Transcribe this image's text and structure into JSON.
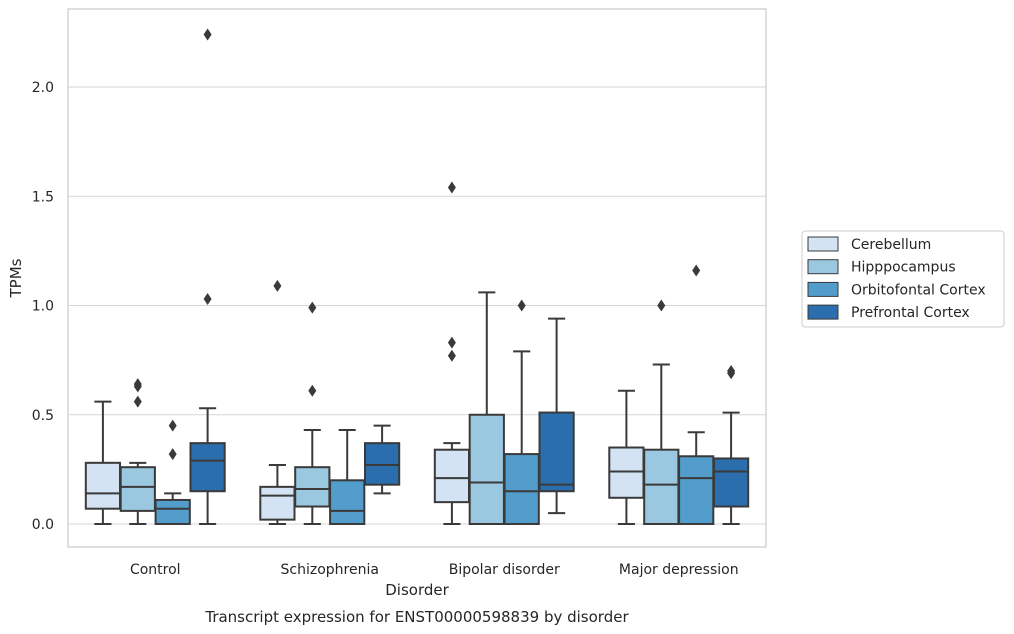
{
  "chart_data": {
    "type": "boxplot",
    "xlabel": "Disorder",
    "ylabel": "TPMs",
    "caption": "Transcript expression for ENST00000598839 by disorder",
    "ylim": [
      -0.11,
      2.36
    ],
    "yticks": [
      "0.0",
      "0.5",
      "1.0",
      "1.5",
      "2.0"
    ],
    "grid": "horizontal",
    "legend_position": "right",
    "categories": [
      "Control",
      "Schizophrenia",
      "Bipolar disorder",
      "Major depression"
    ],
    "series": [
      {
        "name": "Cerebellum",
        "color": "#d3e3f3",
        "boxes": [
          {
            "whisker_low": 0.0,
            "q1": 0.07,
            "median": 0.14,
            "q3": 0.28,
            "whisker_high": 0.56,
            "outliers": []
          },
          {
            "whisker_low": 0.0,
            "q1": 0.02,
            "median": 0.13,
            "q3": 0.17,
            "whisker_high": 0.27,
            "outliers": [
              1.09
            ]
          },
          {
            "whisker_low": 0.0,
            "q1": 0.1,
            "median": 0.21,
            "q3": 0.34,
            "whisker_high": 0.37,
            "outliers": [
              0.77,
              0.83,
              1.54
            ]
          },
          {
            "whisker_low": 0.0,
            "q1": 0.12,
            "median": 0.24,
            "q3": 0.35,
            "whisker_high": 0.61,
            "outliers": []
          }
        ]
      },
      {
        "name": "Hipppocampus",
        "color": "#9ac8e0",
        "boxes": [
          {
            "whisker_low": 0.0,
            "q1": 0.06,
            "median": 0.17,
            "q3": 0.26,
            "whisker_high": 0.28,
            "outliers": [
              0.56,
              0.63,
              0.64
            ]
          },
          {
            "whisker_low": 0.0,
            "q1": 0.08,
            "median": 0.16,
            "q3": 0.26,
            "whisker_high": 0.43,
            "outliers": [
              0.61,
              0.99
            ]
          },
          {
            "whisker_low": 0.0,
            "q1": 0.0,
            "median": 0.19,
            "q3": 0.5,
            "whisker_high": 1.06,
            "outliers": []
          },
          {
            "whisker_low": 0.0,
            "q1": 0.0,
            "median": 0.18,
            "q3": 0.34,
            "whisker_high": 0.73,
            "outliers": [
              1.0
            ]
          }
        ]
      },
      {
        "name": "Orbitofontal Cortex",
        "color": "#529dcc",
        "boxes": [
          {
            "whisker_low": 0.0,
            "q1": 0.0,
            "median": 0.07,
            "q3": 0.11,
            "whisker_high": 0.14,
            "outliers": [
              0.32,
              0.45
            ]
          },
          {
            "whisker_low": 0.0,
            "q1": 0.0,
            "median": 0.06,
            "q3": 0.2,
            "whisker_high": 0.43,
            "outliers": []
          },
          {
            "whisker_low": 0.0,
            "q1": 0.0,
            "median": 0.15,
            "q3": 0.32,
            "whisker_high": 0.79,
            "outliers": [
              1.0
            ]
          },
          {
            "whisker_low": 0.0,
            "q1": 0.0,
            "median": 0.21,
            "q3": 0.31,
            "whisker_high": 0.42,
            "outliers": [
              1.16
            ]
          }
        ]
      },
      {
        "name": "Prefrontal Cortex",
        "color": "#2b6ead",
        "boxes": [
          {
            "whisker_low": 0.0,
            "q1": 0.15,
            "median": 0.29,
            "q3": 0.37,
            "whisker_high": 0.53,
            "outliers": [
              1.03,
              2.24
            ]
          },
          {
            "whisker_low": 0.14,
            "q1": 0.18,
            "median": 0.27,
            "q3": 0.37,
            "whisker_high": 0.45,
            "outliers": []
          },
          {
            "whisker_low": 0.05,
            "q1": 0.15,
            "median": 0.18,
            "q3": 0.51,
            "whisker_high": 0.94,
            "outliers": []
          },
          {
            "whisker_low": 0.0,
            "q1": 0.08,
            "median": 0.24,
            "q3": 0.3,
            "whisker_high": 0.51,
            "outliers": [
              0.69,
              0.7
            ]
          }
        ]
      }
    ]
  }
}
